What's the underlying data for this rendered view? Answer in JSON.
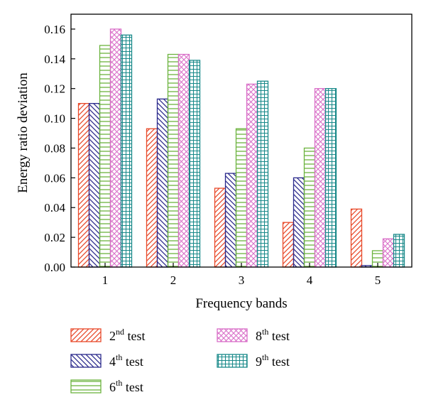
{
  "chart_data": {
    "type": "bar",
    "title": "",
    "xlabel": "Frequency bands",
    "ylabel": "Energy ratio deviation",
    "categories": [
      "1",
      "2",
      "3",
      "4",
      "5"
    ],
    "ylim": [
      0,
      0.17
    ],
    "yticks": [
      "0.00",
      "0.02",
      "0.04",
      "0.06",
      "0.08",
      "0.10",
      "0.12",
      "0.14",
      "0.16"
    ],
    "grid": false,
    "legend_position": "bottom",
    "series": [
      {
        "name": "2nd test",
        "name_base": "2",
        "name_sup": "nd",
        "name_rest": " test",
        "color": "#e8492a",
        "pattern": "diagonal-up",
        "values": [
          0.11,
          0.093,
          0.053,
          0.03,
          0.039
        ]
      },
      {
        "name": "4th test",
        "name_base": "4",
        "name_sup": "th",
        "name_rest": " test",
        "color": "#2b2a8c",
        "pattern": "diagonal-down",
        "values": [
          0.11,
          0.113,
          0.063,
          0.06,
          0.001
        ]
      },
      {
        "name": "6th test",
        "name_base": "6",
        "name_sup": "th",
        "name_rest": " test",
        "color": "#6cb33e",
        "pattern": "horizontal",
        "values": [
          0.149,
          0.143,
          0.093,
          0.08,
          0.011
        ]
      },
      {
        "name": "8th test",
        "name_base": "8",
        "name_sup": "th",
        "name_rest": " test",
        "color": "#d96fc8",
        "pattern": "crosshatch",
        "values": [
          0.16,
          0.143,
          0.123,
          0.12,
          0.019
        ]
      },
      {
        "name": "9th test",
        "name_base": "9",
        "name_sup": "th",
        "name_rest": " test",
        "color": "#1a8a8a",
        "pattern": "grid",
        "values": [
          0.156,
          0.139,
          0.125,
          0.12,
          0.022
        ]
      }
    ]
  }
}
